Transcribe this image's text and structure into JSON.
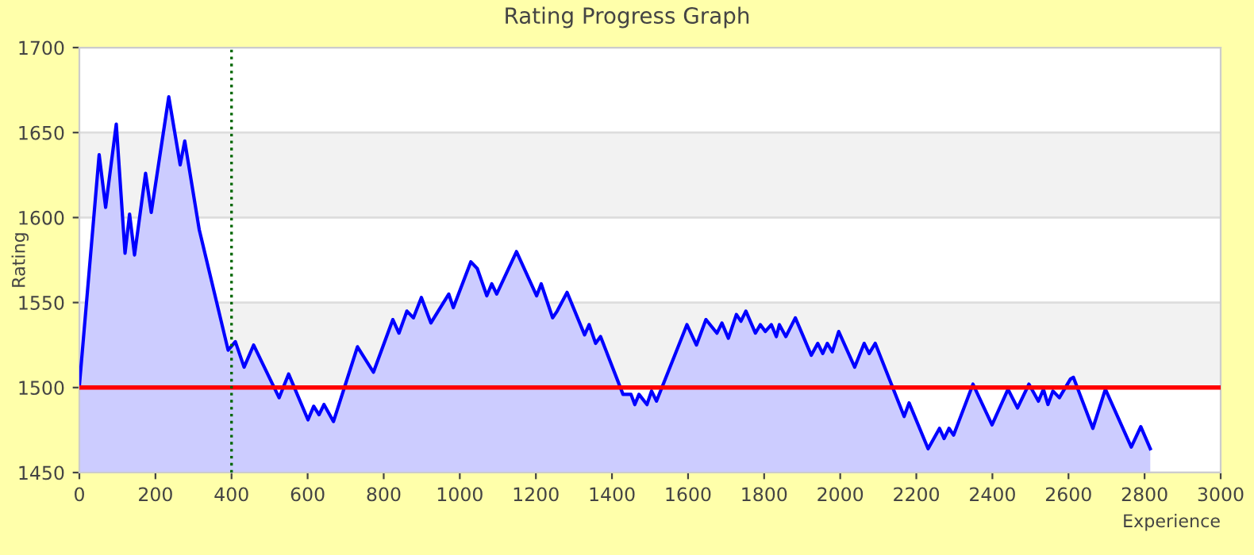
{
  "chart_data": {
    "type": "area",
    "title": "Rating Progress Graph",
    "xlabel": "Experience",
    "ylabel": "Rating",
    "xlim": [
      0,
      3000
    ],
    "xticks": [
      0,
      200,
      400,
      600,
      800,
      1000,
      1200,
      1400,
      1600,
      1800,
      2000,
      2200,
      2400,
      2600,
      2800,
      3000
    ],
    "ylim": [
      1450,
      1700
    ],
    "yticks": [
      1450,
      1500,
      1550,
      1600,
      1650,
      1700
    ],
    "grid": "y",
    "marker": "none",
    "line_style": "solid",
    "ref_lines": [
      {
        "axis": "y",
        "value": 1500,
        "color": "#ff0000",
        "line_style": "solid"
      },
      {
        "axis": "x",
        "value": 400,
        "color": "#006600",
        "line_style": "dotted"
      }
    ],
    "bands": [
      {
        "axis": "y",
        "from": 1500,
        "to": 1550,
        "color": "#f2f2f2"
      },
      {
        "axis": "y",
        "from": 1600,
        "to": 1650,
        "color": "#f2f2f2"
      }
    ],
    "series": [
      {
        "color": "#0000ff",
        "x": [
          0,
          52,
          69,
          97,
          120,
          132,
          145,
          174,
          189,
          235,
          265,
          277,
          315,
          391,
          410,
          433,
          458,
          525,
          550,
          601,
          616,
          630,
          643,
          668,
          731,
          773,
          824,
          840,
          861,
          878,
          899,
          924,
          971,
          983,
          1029,
          1046,
          1071,
          1084,
          1097,
          1149,
          1202,
          1214,
          1244,
          1256,
          1282,
          1328,
          1340,
          1357,
          1370,
          1429,
          1450,
          1460,
          1471,
          1492,
          1504,
          1517,
          1597,
          1622,
          1647,
          1676,
          1689,
          1706,
          1727,
          1739,
          1752,
          1777,
          1790,
          1803,
          1819,
          1832,
          1840,
          1857,
          1882,
          1924,
          1941,
          1954,
          1966,
          1979,
          1996,
          2038,
          2063,
          2076,
          2092,
          2168,
          2181,
          2231,
          2261,
          2273,
          2286,
          2298,
          2349,
          2399,
          2441,
          2466,
          2496,
          2521,
          2534,
          2546,
          2559,
          2576,
          2605,
          2613,
          2664,
          2697,
          2765,
          2790,
          2815
        ],
        "values": [
          1501,
          1637,
          1606,
          1655,
          1579,
          1602,
          1578,
          1626,
          1603,
          1671,
          1631,
          1645,
          1593,
          1522,
          1527,
          1512,
          1525,
          1494,
          1508,
          1481,
          1489,
          1484,
          1490,
          1480,
          1524,
          1509,
          1540,
          1532,
          1545,
          1541,
          1553,
          1538,
          1555,
          1547,
          1574,
          1570,
          1554,
          1561,
          1555,
          1580,
          1554,
          1561,
          1541,
          1545,
          1556,
          1531,
          1537,
          1526,
          1530,
          1496,
          1496,
          1490,
          1496,
          1490,
          1498,
          1492,
          1537,
          1525,
          1540,
          1532,
          1538,
          1529,
          1543,
          1539,
          1545,
          1532,
          1537,
          1533,
          1537,
          1530,
          1537,
          1530,
          1541,
          1519,
          1526,
          1520,
          1526,
          1521,
          1533,
          1512,
          1526,
          1520,
          1526,
          1483,
          1491,
          1464,
          1476,
          1470,
          1476,
          1472,
          1502,
          1478,
          1499,
          1488,
          1502,
          1492,
          1499,
          1490,
          1498,
          1494,
          1505,
          1506,
          1476,
          1499,
          1465,
          1477,
          1464
        ]
      }
    ]
  }
}
